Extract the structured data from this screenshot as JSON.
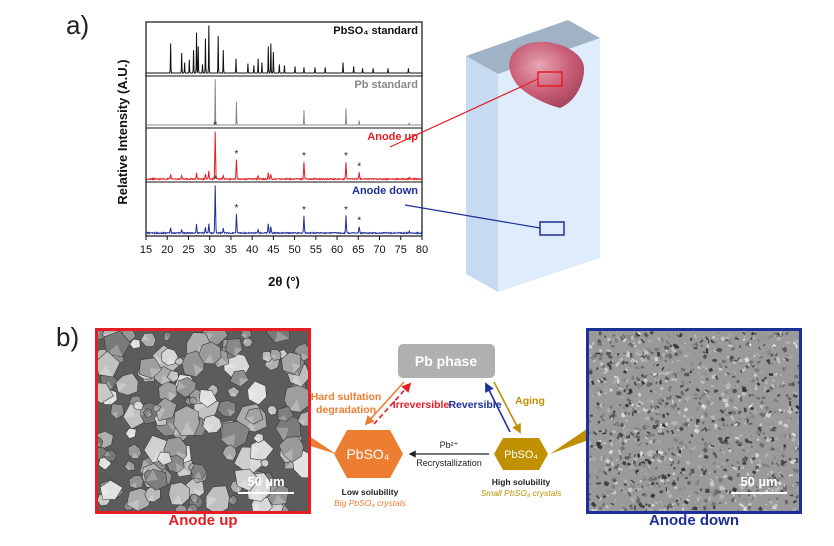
{
  "figure": {
    "panel_a": "a)",
    "panel_b": "b)"
  },
  "chart_data": {
    "type": "line",
    "xlabel": "2θ (°)",
    "ylabel": "Relative Intensity (A.U.)",
    "xlim": [
      15,
      80
    ],
    "x_ticks": [
      15,
      20,
      25,
      30,
      35,
      40,
      45,
      50,
      55,
      60,
      65,
      70,
      75,
      80
    ],
    "series": [
      {
        "name": "PbSO₄ standard",
        "color": "#111111",
        "peaks": [
          {
            "x": 20.8,
            "h": 0.62
          },
          {
            "x": 23.4,
            "h": 0.42
          },
          {
            "x": 24.1,
            "h": 0.22
          },
          {
            "x": 25.2,
            "h": 0.28
          },
          {
            "x": 26.2,
            "h": 0.48
          },
          {
            "x": 26.9,
            "h": 0.85
          },
          {
            "x": 27.3,
            "h": 0.56
          },
          {
            "x": 28.3,
            "h": 0.18
          },
          {
            "x": 29.0,
            "h": 0.72
          },
          {
            "x": 29.8,
            "h": 1.0
          },
          {
            "x": 32.0,
            "h": 0.78
          },
          {
            "x": 33.2,
            "h": 0.48
          },
          {
            "x": 36.2,
            "h": 0.3
          },
          {
            "x": 39.0,
            "h": 0.2
          },
          {
            "x": 40.4,
            "h": 0.16
          },
          {
            "x": 41.4,
            "h": 0.3
          },
          {
            "x": 42.3,
            "h": 0.22
          },
          {
            "x": 43.8,
            "h": 0.56
          },
          {
            "x": 44.4,
            "h": 0.62
          },
          {
            "x": 45.0,
            "h": 0.44
          },
          {
            "x": 46.4,
            "h": 0.18
          },
          {
            "x": 47.6,
            "h": 0.16
          },
          {
            "x": 50.1,
            "h": 0.14
          },
          {
            "x": 52.2,
            "h": 0.12
          },
          {
            "x": 54.8,
            "h": 0.12
          },
          {
            "x": 57.2,
            "h": 0.12
          },
          {
            "x": 61.4,
            "h": 0.22
          },
          {
            "x": 63.9,
            "h": 0.14
          },
          {
            "x": 66.0,
            "h": 0.1
          },
          {
            "x": 68.5,
            "h": 0.1
          },
          {
            "x": 72.0,
            "h": 0.1
          },
          {
            "x": 76.8,
            "h": 0.1
          }
        ]
      },
      {
        "name": "Pb standard",
        "color": "#888888",
        "peaks": [
          {
            "x": 31.3,
            "h": 1.0
          },
          {
            "x": 36.3,
            "h": 0.5
          },
          {
            "x": 52.2,
            "h": 0.32
          },
          {
            "x": 62.1,
            "h": 0.36
          },
          {
            "x": 65.2,
            "h": 0.1
          },
          {
            "x": 77.0,
            "h": 0.05
          }
        ]
      },
      {
        "name": "Anode up",
        "color": "#e31e24",
        "peaks": [
          {
            "x": 20.8,
            "h": 0.09
          },
          {
            "x": 23.4,
            "h": 0.06
          },
          {
            "x": 26.9,
            "h": 0.14
          },
          {
            "x": 29.0,
            "h": 0.1
          },
          {
            "x": 29.8,
            "h": 0.16
          },
          {
            "x": 31.3,
            "h": 1.0
          },
          {
            "x": 33.2,
            "h": 0.08
          },
          {
            "x": 36.3,
            "h": 0.4
          },
          {
            "x": 41.4,
            "h": 0.06
          },
          {
            "x": 43.8,
            "h": 0.14
          },
          {
            "x": 44.4,
            "h": 0.1
          },
          {
            "x": 52.2,
            "h": 0.36
          },
          {
            "x": 62.1,
            "h": 0.36
          },
          {
            "x": 65.2,
            "h": 0.14
          },
          {
            "x": 77.0,
            "h": 0.04
          }
        ]
      },
      {
        "name": "Anode down",
        "color": "#1f2f99",
        "peaks": [
          {
            "x": 20.8,
            "h": 0.12
          },
          {
            "x": 23.4,
            "h": 0.08
          },
          {
            "x": 26.9,
            "h": 0.18
          },
          {
            "x": 29.0,
            "h": 0.12
          },
          {
            "x": 29.8,
            "h": 0.2
          },
          {
            "x": 31.3,
            "h": 1.0
          },
          {
            "x": 33.2,
            "h": 0.1
          },
          {
            "x": 36.3,
            "h": 0.4
          },
          {
            "x": 41.4,
            "h": 0.08
          },
          {
            "x": 43.8,
            "h": 0.2
          },
          {
            "x": 44.4,
            "h": 0.14
          },
          {
            "x": 52.2,
            "h": 0.36
          },
          {
            "x": 62.1,
            "h": 0.36
          },
          {
            "x": 65.2,
            "h": 0.14
          },
          {
            "x": 77.0,
            "h": 0.04
          }
        ]
      }
    ],
    "marker": "*",
    "marked_peaks": [
      31.3,
      36.3,
      52.2,
      62.1,
      65.2
    ]
  },
  "electrode": {
    "face_color": "#dbeafc",
    "crystal_color": "#c8506a"
  },
  "scheme": {
    "pb_phase": "Pb phase",
    "pbso4": "PbSO₄",
    "hard_sulfation": [
      "Hard sulfation",
      "degradation"
    ],
    "irreversible": "Irreversible",
    "reversible": "Reversible",
    "aging": "Aging",
    "pb2plus": "Pb²⁺",
    "recrystallization": "Recrystallization",
    "low_solubility": "Low solubility",
    "big_crystals": "Big PbSO₄ crystals",
    "high_solubility": "High solubility",
    "small_crystals": "Small PbSO₄ crystals",
    "colors": {
      "orange": "#ec7d31",
      "gold": "#c09000",
      "red": "#e31e24",
      "blue": "#1f2f99",
      "gray": "#b0b0b0"
    }
  },
  "sem": {
    "left": {
      "scale_bar": "50 µm",
      "caption": "Anode up",
      "border": "#e31e24"
    },
    "right": {
      "scale_bar": "50 µm",
      "caption": "Anode down",
      "border": "#1f2f99"
    }
  }
}
